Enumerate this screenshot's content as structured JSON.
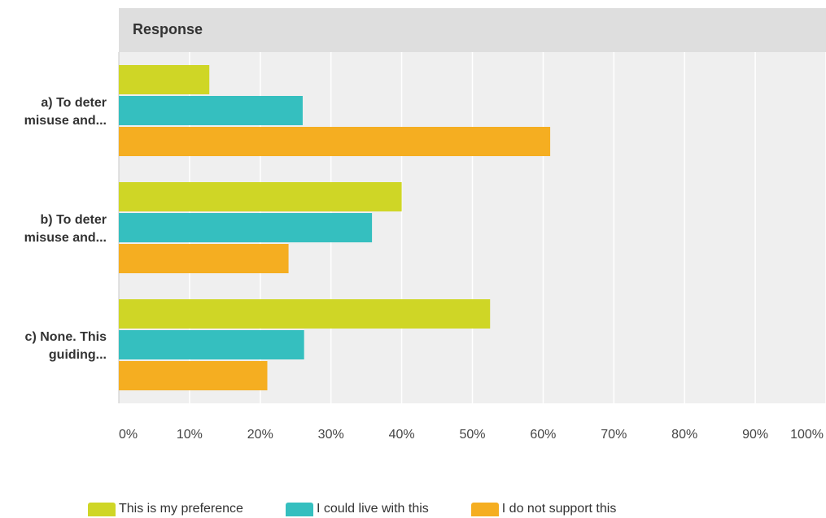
{
  "chart_data": {
    "type": "bar",
    "orientation": "horizontal",
    "title": "Response",
    "categories": [
      "a) To deter misuse and...",
      "b) To deter misuse and...",
      "c) None. This guiding..."
    ],
    "category_label_lines": [
      [
        "a) To deter",
        "misuse and..."
      ],
      [
        "b) To deter",
        "misuse and..."
      ],
      [
        "c) None. This",
        "guiding..."
      ]
    ],
    "series": [
      {
        "name": "This is my preference",
        "color": "#cfd626",
        "values": [
          12.8,
          40.0,
          52.5
        ]
      },
      {
        "name": "I could live with this",
        "color": "#35bfbf",
        "values": [
          26.0,
          35.8,
          26.2
        ]
      },
      {
        "name": "I do not support this",
        "color": "#f5ae21",
        "values": [
          61.0,
          24.0,
          21.0
        ]
      }
    ],
    "xlim": [
      0,
      100
    ],
    "ticks": [
      "0%",
      "10%",
      "20%",
      "30%",
      "40%",
      "50%",
      "60%",
      "70%",
      "80%",
      "90%",
      "100%"
    ],
    "grid": true,
    "legend_position": "bottom"
  }
}
